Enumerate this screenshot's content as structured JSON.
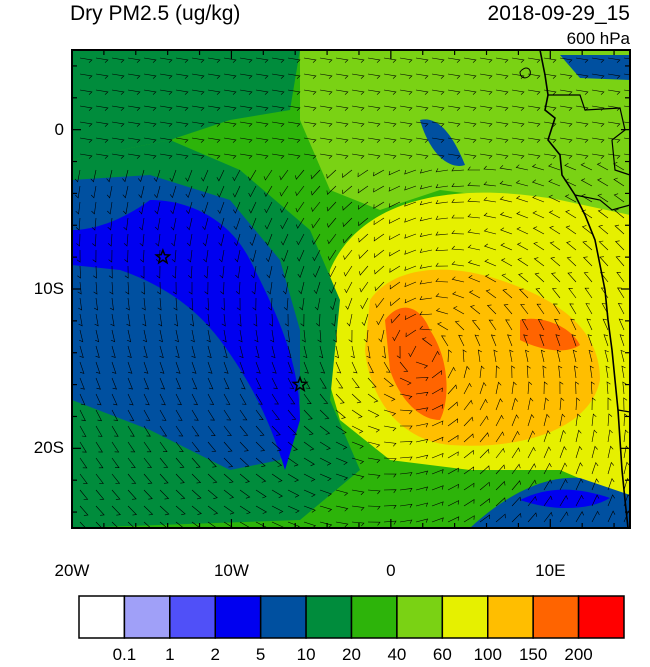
{
  "title": "Dry PM2.5 (ug/kg)",
  "datetime": "2018-09-29_15",
  "level": "600 hPa",
  "lat_ticks": [
    "0",
    "10S",
    "20S"
  ],
  "lon_ticks": [
    "20W",
    "10W",
    "0",
    "10E"
  ],
  "colorbar": {
    "labels": [
      "0.1",
      "1",
      "2",
      "5",
      "10",
      "20",
      "40",
      "60",
      "100",
      "150",
      "200"
    ],
    "colors": [
      "#ffffff",
      "#a0a0f8",
      "#5050f8",
      "#0000f0",
      "#0050a0",
      "#008c3c",
      "#2db40a",
      "#7ad214",
      "#e6f000",
      "#ffbe00",
      "#ff6400",
      "#ff0000"
    ]
  },
  "markers": [
    {
      "name": "station-star",
      "lon": -14.3,
      "lat": -8.0
    },
    {
      "name": "station-star",
      "lon": -5.7,
      "lat": -16.0
    }
  ]
}
